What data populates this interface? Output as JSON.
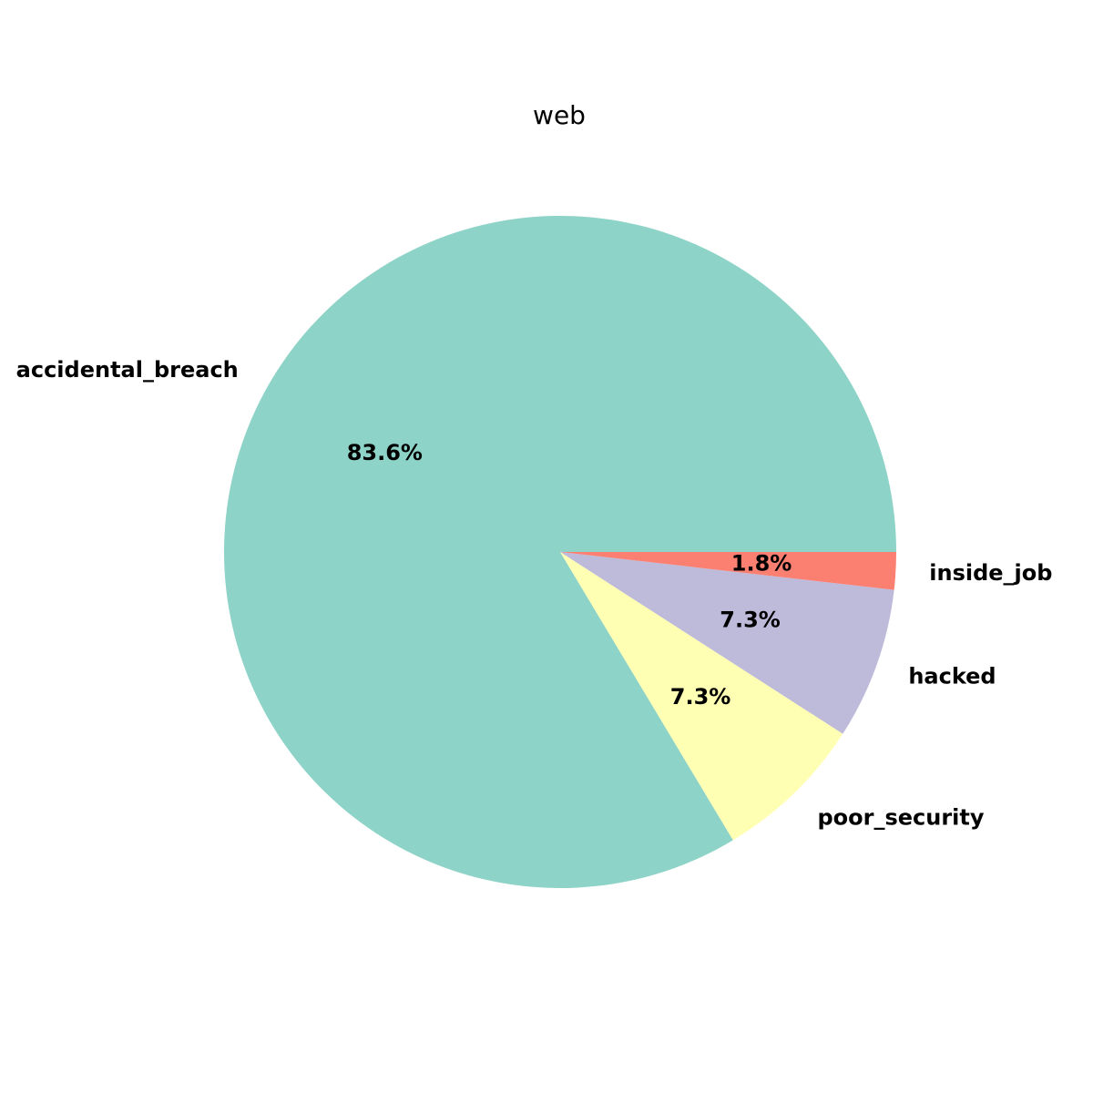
{
  "chart_data": {
    "type": "pie",
    "title": "web",
    "slices": [
      {
        "label": "accidental_breach",
        "value": 83.6,
        "percent_label": "83.6%",
        "color": "#8dd3c7"
      },
      {
        "label": "poor_security",
        "value": 7.3,
        "percent_label": "7.3%",
        "color": "#ffffb3"
      },
      {
        "label": "hacked",
        "value": 7.3,
        "percent_label": "7.3%",
        "color": "#bebada"
      },
      {
        "label": "inside_job",
        "value": 1.8,
        "percent_label": "1.8%",
        "color": "#fb8072"
      }
    ],
    "start_angle_deg": 0,
    "direction": "counterclockwise",
    "legend": "none",
    "grid": false
  }
}
